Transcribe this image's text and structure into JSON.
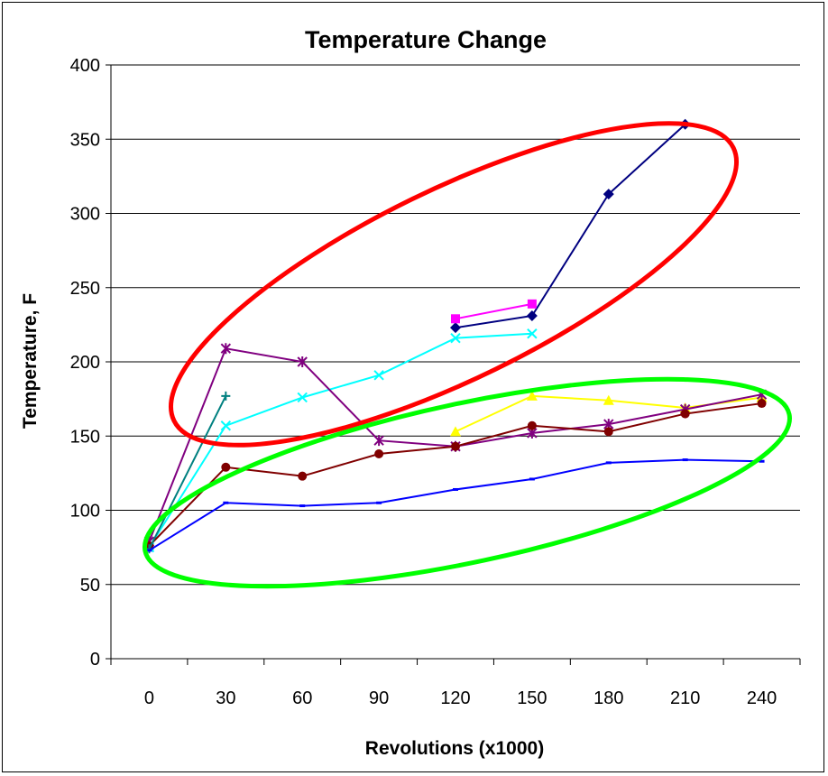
{
  "chart_data": {
    "type": "line",
    "title": "Temperature Change",
    "xlabel": "Revolutions (x1000)",
    "ylabel": "Temperature, F",
    "categories": [
      "0",
      "30",
      "60",
      "90",
      "120",
      "150",
      "180",
      "210",
      "240"
    ],
    "ylim": [
      0,
      400
    ],
    "yticks": [
      0,
      50,
      100,
      150,
      200,
      250,
      300,
      350,
      400
    ],
    "grid": "horizontal",
    "legend": "none",
    "series": [
      {
        "color": "#000080",
        "marker": "diamond",
        "values": [
          null,
          null,
          null,
          null,
          223,
          231,
          313,
          360,
          null
        ]
      },
      {
        "color": "#ff00ff",
        "marker": "square",
        "values": [
          null,
          null,
          null,
          null,
          229,
          239,
          null,
          null,
          null
        ]
      },
      {
        "color": "#ffff00",
        "marker": "triangle",
        "values": [
          null,
          null,
          null,
          null,
          153,
          177,
          174,
          169,
          176
        ]
      },
      {
        "color": "#00ffff",
        "marker": "x",
        "values": [
          75,
          157,
          176,
          191,
          216,
          219,
          null,
          null,
          null
        ]
      },
      {
        "color": "#800080",
        "marker": "star",
        "values": [
          79,
          209,
          200,
          147,
          143,
          152,
          158,
          168,
          178
        ]
      },
      {
        "color": "#800000",
        "marker": "circle",
        "values": [
          76,
          129,
          123,
          138,
          143,
          157,
          153,
          165,
          172
        ]
      },
      {
        "color": "#008080",
        "marker": "plus",
        "values": [
          74,
          177,
          null,
          null,
          null,
          null,
          null,
          null,
          null
        ]
      },
      {
        "color": "#0000ff",
        "marker": "dash",
        "values": [
          73,
          105,
          103,
          105,
          114,
          121,
          132,
          134,
          133
        ]
      }
    ],
    "annotations": [
      {
        "shape": "ellipse",
        "color": "#ff0000"
      },
      {
        "shape": "ellipse",
        "color": "#00ff00"
      }
    ]
  }
}
